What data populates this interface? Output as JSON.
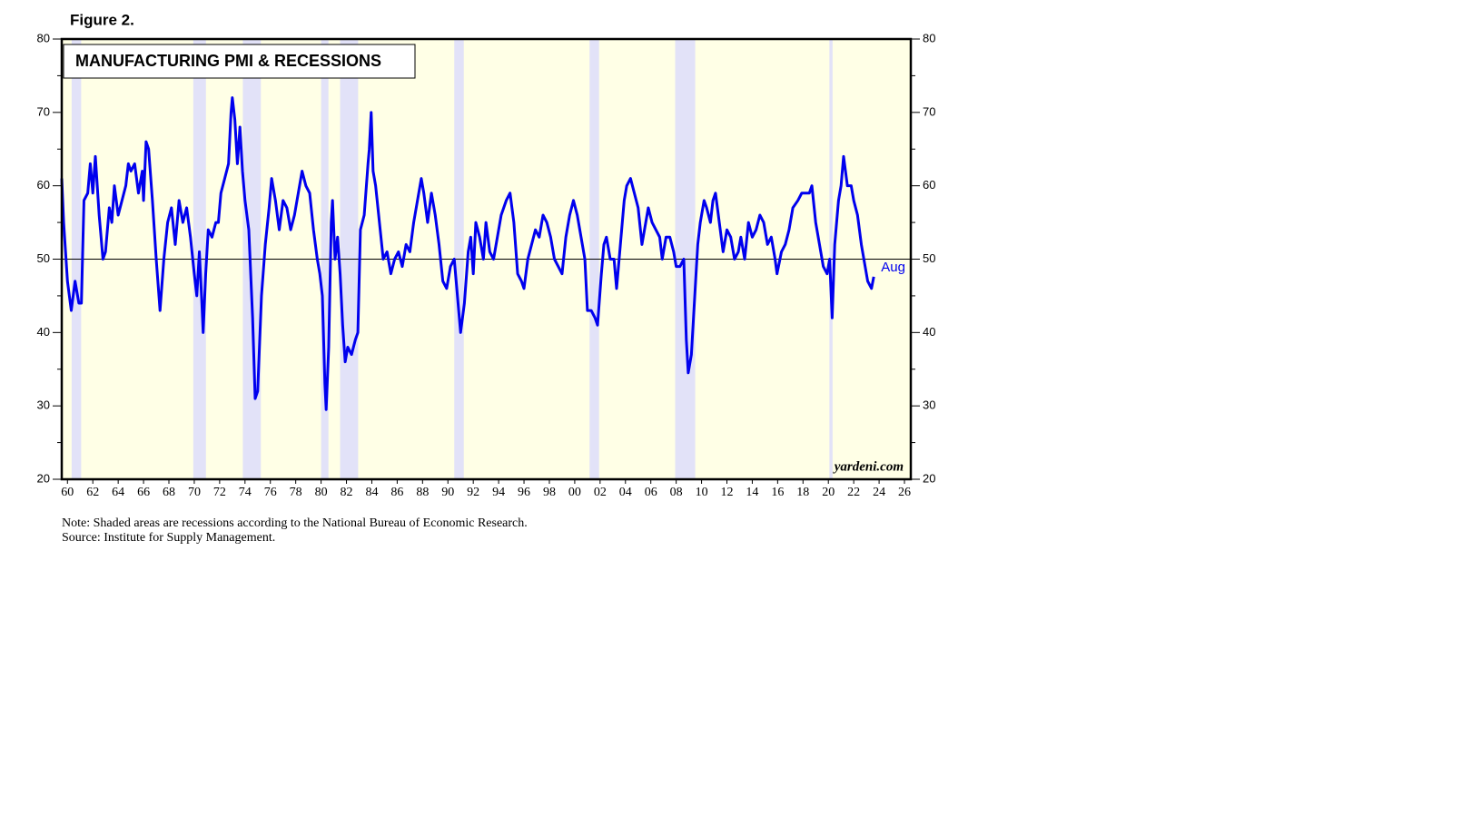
{
  "chart_data": {
    "type": "line",
    "figure_label": "Figure 2.",
    "title": "MANUFACTURING PMI & RECESSIONS",
    "watermark": "yardeni.com",
    "note": "Note: Shaded areas are recessions according to the National Bureau of Economic Research.",
    "source": "Source: Institute for Supply Management.",
    "end_annotation": "Aug",
    "color": "#0000ee",
    "background": "#ffffe6",
    "recession_color": "#e2e2f8",
    "reference_line": 50,
    "xlim": [
      1959.55,
      2026.5
    ],
    "ylim": [
      20,
      80
    ],
    "y2lim": [
      20,
      80
    ],
    "yticks": [
      20,
      30,
      40,
      50,
      60,
      70,
      80
    ],
    "y2ticks": [
      20,
      30,
      40,
      50,
      60,
      70,
      80
    ],
    "yminorticks": [
      25,
      35,
      45,
      55,
      65,
      75
    ],
    "xticks": [
      {
        "value": 1960,
        "label": "60"
      },
      {
        "value": 1962,
        "label": "62"
      },
      {
        "value": 1964,
        "label": "64"
      },
      {
        "value": 1966,
        "label": "66"
      },
      {
        "value": 1968,
        "label": "68"
      },
      {
        "value": 1970,
        "label": "70"
      },
      {
        "value": 1972,
        "label": "72"
      },
      {
        "value": 1974,
        "label": "74"
      },
      {
        "value": 1976,
        "label": "76"
      },
      {
        "value": 1978,
        "label": "78"
      },
      {
        "value": 1980,
        "label": "80"
      },
      {
        "value": 1982,
        "label": "82"
      },
      {
        "value": 1984,
        "label": "84"
      },
      {
        "value": 1986,
        "label": "86"
      },
      {
        "value": 1988,
        "label": "88"
      },
      {
        "value": 1990,
        "label": "90"
      },
      {
        "value": 1992,
        "label": "92"
      },
      {
        "value": 1994,
        "label": "94"
      },
      {
        "value": 1996,
        "label": "96"
      },
      {
        "value": 1998,
        "label": "98"
      },
      {
        "value": 2000,
        "label": "00"
      },
      {
        "value": 2002,
        "label": "02"
      },
      {
        "value": 2004,
        "label": "04"
      },
      {
        "value": 2006,
        "label": "06"
      },
      {
        "value": 2008,
        "label": "08"
      },
      {
        "value": 2010,
        "label": "10"
      },
      {
        "value": 2012,
        "label": "12"
      },
      {
        "value": 2014,
        "label": "14"
      },
      {
        "value": 2016,
        "label": "16"
      },
      {
        "value": 2018,
        "label": "18"
      },
      {
        "value": 2020,
        "label": "20"
      },
      {
        "value": 2022,
        "label": "22"
      },
      {
        "value": 2024,
        "label": "24"
      },
      {
        "value": 2026,
        "label": "26"
      }
    ],
    "recessions": [
      {
        "start": 1960.33,
        "end": 1961.08
      },
      {
        "start": 1969.92,
        "end": 1970.92
      },
      {
        "start": 1973.83,
        "end": 1975.25
      },
      {
        "start": 1980.0,
        "end": 1980.58
      },
      {
        "start": 1981.5,
        "end": 1982.92
      },
      {
        "start": 1990.5,
        "end": 1991.25
      },
      {
        "start": 2001.17,
        "end": 2001.92
      },
      {
        "start": 2007.92,
        "end": 2009.5
      },
      {
        "start": 2020.08,
        "end": 2020.33
      }
    ],
    "x": [
      1959.55,
      1959.7,
      1960.0,
      1960.3,
      1960.6,
      1960.9,
      1961.1,
      1961.3,
      1961.6,
      1961.8,
      1962.0,
      1962.2,
      1962.5,
      1962.8,
      1963.0,
      1963.3,
      1963.5,
      1963.7,
      1964.0,
      1964.3,
      1964.6,
      1964.8,
      1965.0,
      1965.3,
      1965.6,
      1965.9,
      1966.0,
      1966.2,
      1966.4,
      1966.7,
      1967.0,
      1967.3,
      1967.6,
      1967.9,
      1968.2,
      1968.5,
      1968.8,
      1969.1,
      1969.4,
      1969.7,
      1970.0,
      1970.2,
      1970.4,
      1970.6,
      1970.7,
      1970.9,
      1971.1,
      1971.4,
      1971.7,
      1971.9,
      1972.1,
      1972.4,
      1972.7,
      1972.9,
      1973.0,
      1973.2,
      1973.4,
      1973.6,
      1973.8,
      1974.0,
      1974.3,
      1974.6,
      1974.8,
      1975.0,
      1975.3,
      1975.6,
      1975.9,
      1976.1,
      1976.4,
      1976.7,
      1977.0,
      1977.3,
      1977.6,
      1977.9,
      1978.2,
      1978.5,
      1978.8,
      1979.1,
      1979.4,
      1979.7,
      1979.9,
      1980.1,
      1980.3,
      1980.4,
      1980.6,
      1980.8,
      1980.9,
      1981.1,
      1981.3,
      1981.5,
      1981.7,
      1981.9,
      1982.1,
      1982.4,
      1982.7,
      1982.9,
      1983.1,
      1983.4,
      1983.7,
      1983.8,
      1983.95,
      1984.1,
      1984.3,
      1984.6,
      1984.9,
      1985.2,
      1985.5,
      1985.8,
      1986.1,
      1986.4,
      1986.7,
      1987.0,
      1987.3,
      1987.6,
      1987.9,
      1988.1,
      1988.4,
      1988.7,
      1989.0,
      1989.3,
      1989.6,
      1989.9,
      1990.2,
      1990.5,
      1990.8,
      1991.0,
      1991.3,
      1991.6,
      1991.8,
      1992.0,
      1992.2,
      1992.5,
      1992.8,
      1993.0,
      1993.3,
      1993.6,
      1993.9,
      1994.2,
      1994.6,
      1994.9,
      1995.2,
      1995.5,
      1995.8,
      1996.0,
      1996.3,
      1996.6,
      1996.9,
      1997.2,
      1997.5,
      1997.8,
      1998.1,
      1998.4,
      1998.7,
      1999.0,
      1999.3,
      1999.6,
      1999.9,
      2000.2,
      2000.5,
      2000.8,
      2001.0,
      2001.3,
      2001.6,
      2001.8,
      2002.1,
      2002.3,
      2002.5,
      2002.8,
      2003.1,
      2003.3,
      2003.6,
      2003.9,
      2004.1,
      2004.4,
      2004.7,
      2005.0,
      2005.3,
      2005.6,
      2005.8,
      2006.1,
      2006.4,
      2006.7,
      2006.9,
      2007.2,
      2007.5,
      2007.8,
      2008.0,
      2008.3,
      2008.6,
      2008.8,
      2008.95,
      2009.2,
      2009.5,
      2009.7,
      2009.9,
      2010.2,
      2010.4,
      2010.7,
      2010.9,
      2011.1,
      2011.4,
      2011.7,
      2012.0,
      2012.3,
      2012.6,
      2012.9,
      2013.1,
      2013.4,
      2013.7,
      2014.0,
      2014.3,
      2014.6,
      2014.9,
      2015.2,
      2015.5,
      2015.8,
      2015.95,
      2016.3,
      2016.6,
      2016.9,
      2017.2,
      2017.6,
      2017.9,
      2018.2,
      2018.5,
      2018.7,
      2019.0,
      2019.3,
      2019.6,
      2019.9,
      2020.1,
      2020.3,
      2020.5,
      2020.8,
      2021.0,
      2021.2,
      2021.5,
      2021.8,
      2022.0,
      2022.3,
      2022.6,
      2022.9,
      2023.1,
      2023.4,
      2023.58
    ],
    "values": [
      61,
      55,
      47,
      43,
      47,
      44,
      44,
      58,
      59,
      63,
      59,
      64,
      56,
      50,
      51,
      57,
      55,
      60,
      56,
      58,
      60,
      63,
      62,
      63,
      59,
      62,
      58,
      66,
      65,
      58,
      50,
      43,
      50,
      55,
      57,
      52,
      58,
      55,
      57,
      53,
      48,
      45,
      51,
      44,
      40,
      48,
      54,
      53,
      55,
      55,
      59,
      61,
      63,
      70,
      72,
      69,
      63,
      68,
      62,
      58,
      54,
      42,
      31,
      32,
      45,
      52,
      57,
      61,
      58,
      54,
      58,
      57,
      54,
      56,
      59,
      62,
      60,
      59,
      54,
      50,
      48,
      45,
      33,
      29.5,
      38,
      55,
      58,
      50,
      53,
      48,
      41,
      36,
      38,
      37,
      39,
      40,
      54,
      56,
      63,
      65,
      70,
      62,
      60,
      55,
      50,
      51,
      48,
      50,
      51,
      49,
      52,
      51,
      55,
      58,
      61,
      59,
      55,
      59,
      56,
      52,
      47,
      46,
      49,
      50,
      44,
      40,
      44,
      51,
      53,
      48,
      55,
      53,
      50,
      55,
      51,
      50,
      53,
      56,
      58,
      59,
      55,
      48,
      47,
      46,
      50,
      52,
      54,
      53,
      56,
      55,
      53,
      50,
      49,
      48,
      53,
      56,
      58,
      56,
      53,
      50,
      43,
      43,
      42,
      41,
      48,
      52,
      53,
      50,
      50,
      46,
      52,
      58,
      60,
      61,
      59,
      57,
      52,
      55,
      57,
      55,
      54,
      53,
      50,
      53,
      53,
      51,
      49,
      49,
      50,
      39,
      34.5,
      37,
      46,
      52,
      55,
      58,
      57,
      55,
      58,
      59,
      55,
      51,
      54,
      53,
      50,
      51,
      53,
      50,
      55,
      53,
      54,
      56,
      55,
      52,
      53,
      50,
      48,
      51,
      52,
      54,
      57,
      58,
      59,
      59,
      59,
      60,
      55,
      52,
      49,
      48,
      50,
      42,
      52,
      58,
      60,
      64,
      60,
      60,
      58,
      56,
      52,
      49,
      47,
      46,
      47.6
    ]
  }
}
